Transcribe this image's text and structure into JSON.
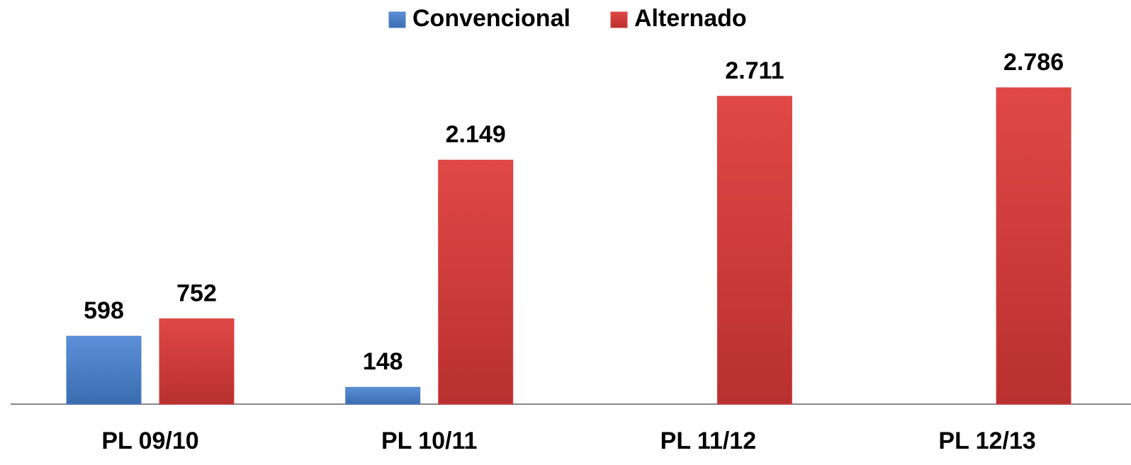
{
  "chart_data": {
    "type": "bar",
    "categories": [
      "PL 09/10",
      "PL 10/11",
      "PL 11/12",
      "PL 12/13"
    ],
    "series": [
      {
        "name": "Convencional",
        "color": "#4a7fc8",
        "values": [
          598,
          148,
          null,
          null
        ],
        "value_labels": [
          "598",
          "148",
          null,
          null
        ]
      },
      {
        "name": "Alternado",
        "color": "#d9403f",
        "values": [
          752,
          2149,
          2711,
          2786
        ],
        "value_labels": [
          "752",
          "2.149",
          "2.711",
          "2.786"
        ]
      }
    ],
    "legend": "top"
  }
}
